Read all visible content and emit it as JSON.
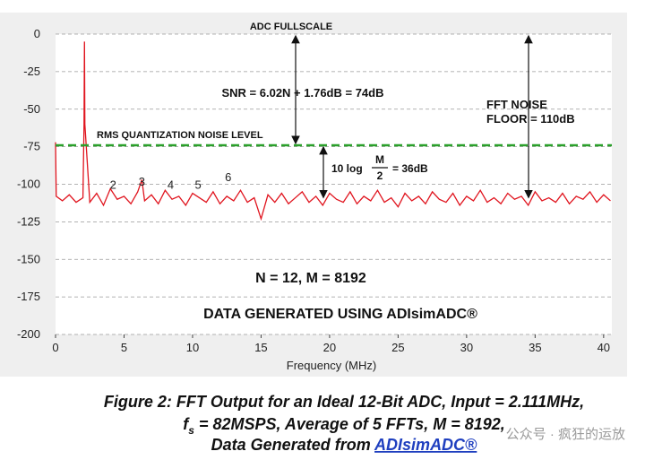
{
  "chart_data": {
    "type": "line",
    "title": "ADC FULLSCALE",
    "x_label": "Frequency (MHz)",
    "xlim": [
      0,
      40.6
    ],
    "ylim": [
      -200,
      0
    ],
    "xticks": [
      0,
      5,
      10,
      15,
      20,
      25,
      30,
      35,
      40
    ],
    "yticks": [
      0,
      -25,
      -50,
      -75,
      -100,
      -125,
      -150,
      -175,
      -200
    ],
    "grid": true,
    "x": [
      0,
      0.05,
      0.5,
      1,
      1.5,
      2,
      2.08,
      2.111,
      2.14,
      2.5,
      3,
      3.5,
      4,
      4.5,
      5,
      5.5,
      6,
      6.3,
      6.5,
      7,
      7.5,
      8,
      8.5,
      9,
      9.5,
      10,
      10.5,
      11,
      11.5,
      12,
      12.5,
      13,
      13.5,
      14,
      14.5,
      15,
      15.5,
      16,
      16.5,
      17,
      17.5,
      18,
      18.5,
      19,
      19.5,
      20,
      20.5,
      21,
      21.5,
      22,
      22.5,
      23,
      23.5,
      24,
      24.5,
      25,
      25.5,
      26,
      26.5,
      27,
      27.5,
      28,
      28.5,
      29,
      29.5,
      30,
      30.5,
      31,
      31.5,
      32,
      32.5,
      33,
      33.5,
      34,
      34.5,
      35,
      35.5,
      36,
      36.5,
      37,
      37.5,
      38,
      38.5,
      39,
      39.5,
      40,
      40.5
    ],
    "series": [
      {
        "color": "#e0141e",
        "values": [
          -72,
          -108,
          -111,
          -107,
          -112,
          -109,
          -60,
          -5,
          -60,
          -112,
          -106,
          -114,
          -103,
          -110,
          -108,
          -113,
          -105,
          -97,
          -111,
          -107,
          -113,
          -104,
          -110,
          -108,
          -114,
          -106,
          -109,
          -112,
          -105,
          -113,
          -108,
          -111,
          -104,
          -112,
          -109,
          -123,
          -107,
          -112,
          -106,
          -113,
          -109,
          -105,
          -112,
          -108,
          -114,
          -106,
          -110,
          -112,
          -105,
          -113,
          -108,
          -111,
          -104,
          -112,
          -109,
          -115,
          -106,
          -111,
          -108,
          -113,
          -105,
          -110,
          -112,
          -106,
          -114,
          -108,
          -111,
          -104,
          -112,
          -109,
          -113,
          -106,
          -110,
          -108,
          -114,
          -105,
          -111,
          -109,
          -112,
          -106,
          -113,
          -108,
          -110,
          -105,
          -112,
          -107,
          -111
        ]
      }
    ],
    "noise_level": -74,
    "noise_level_color": "#2aa02a",
    "floor": -110,
    "harmonic_labels": [
      {
        "x": 4.2,
        "y": -103,
        "label": "2"
      },
      {
        "x": 6.3,
        "y": -101,
        "label": "3"
      },
      {
        "x": 8.4,
        "y": -103,
        "label": "4"
      },
      {
        "x": 10.4,
        "y": -103,
        "label": "5"
      },
      {
        "x": 12.6,
        "y": -98,
        "label": "6"
      }
    ],
    "annotations": {
      "snr": "SNR = 6.02N + 1.76dB = 74dB",
      "rms": "RMS QUANTIZATION NOISE LEVEL",
      "gain_prefix": "10 log",
      "gain_num": "M",
      "gain_den": "2",
      "gain_suffix": "= 36dB",
      "floor_1": "FFT NOISE",
      "floor_2": "FLOOR = 110dB",
      "params": "N = 12, M = 8192",
      "source": "DATA GENERATED USING ADIsimADC®"
    }
  },
  "caption": {
    "line1": "Figure 2: FFT Output for an Ideal 12-Bit ADC, Input = 2.111MHz,",
    "line2_f": "f",
    "line2_sub": "s",
    "line2_rest": " = 82MSPS, Average of 5 FFTs, M = 8192,",
    "line3": "Data Generated from ",
    "line3_link": "ADIsimADC®"
  },
  "watermark": "公众号 · 疯狂的运放"
}
